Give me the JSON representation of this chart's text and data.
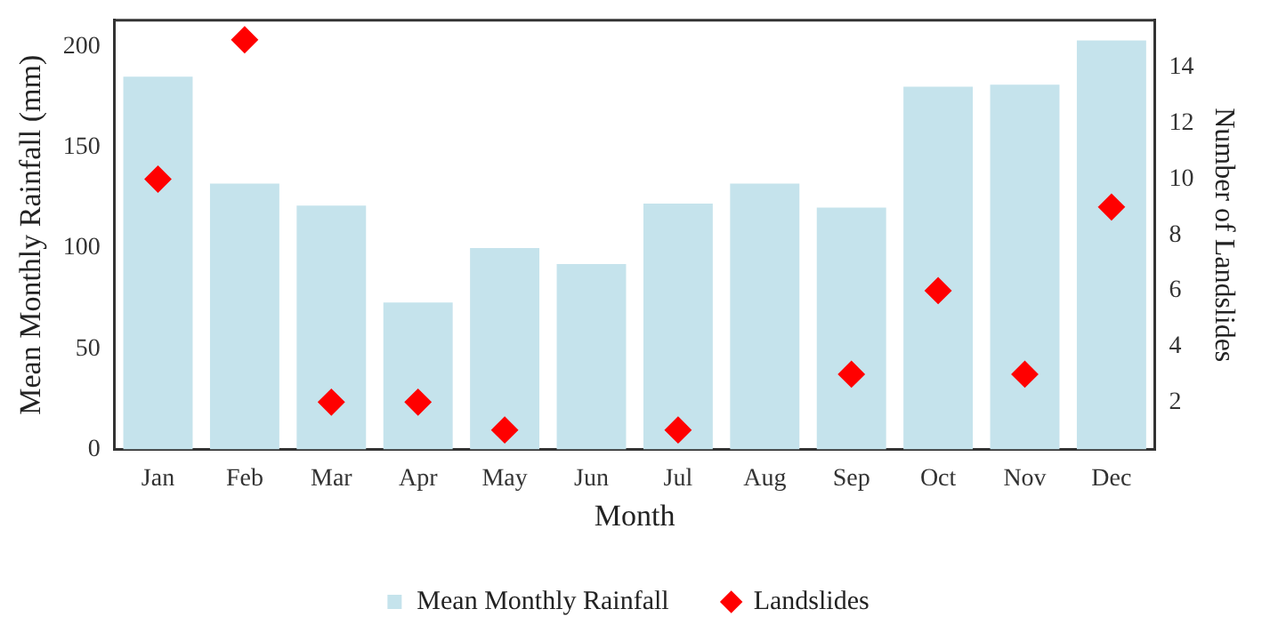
{
  "chart_data": {
    "type": "bar",
    "xlabel": "Month",
    "ylabel": "Mean Monthly Rainfall (mm)",
    "y2label": "Number of Landslides",
    "categories": [
      "Jan",
      "Feb",
      "Mar",
      "Apr",
      "May",
      "Jun",
      "Jul",
      "Aug",
      "Sep",
      "Oct",
      "Nov",
      "Dec"
    ],
    "series": [
      {
        "name": "Mean Monthly Rainfall",
        "type": "bar",
        "color": "#c5e3ec",
        "values": [
          185,
          132,
          121,
          73,
          100,
          92,
          122,
          132,
          120,
          180,
          181,
          203
        ]
      },
      {
        "name": "Landslides",
        "type": "scatter",
        "axis": "y2",
        "color": "#ff0000",
        "marker": "diamond",
        "x": [
          "Jan",
          "Feb",
          "Mar",
          "Apr",
          "May",
          "Jun",
          "Jul",
          "Aug",
          "Sep",
          "Oct",
          "Nov",
          "Dec"
        ],
        "values": [
          10,
          15,
          2,
          2,
          1,
          null,
          1,
          null,
          3,
          6,
          3,
          9
        ]
      }
    ],
    "ylim": [
      0,
      213
    ],
    "yticks": [
      0,
      50,
      100,
      150,
      200
    ],
    "y2lim": [
      0.3,
      15.7
    ],
    "y2ticks": [
      2,
      4,
      6,
      8,
      10,
      12,
      14
    ],
    "grid": false,
    "legend": "bottom"
  }
}
